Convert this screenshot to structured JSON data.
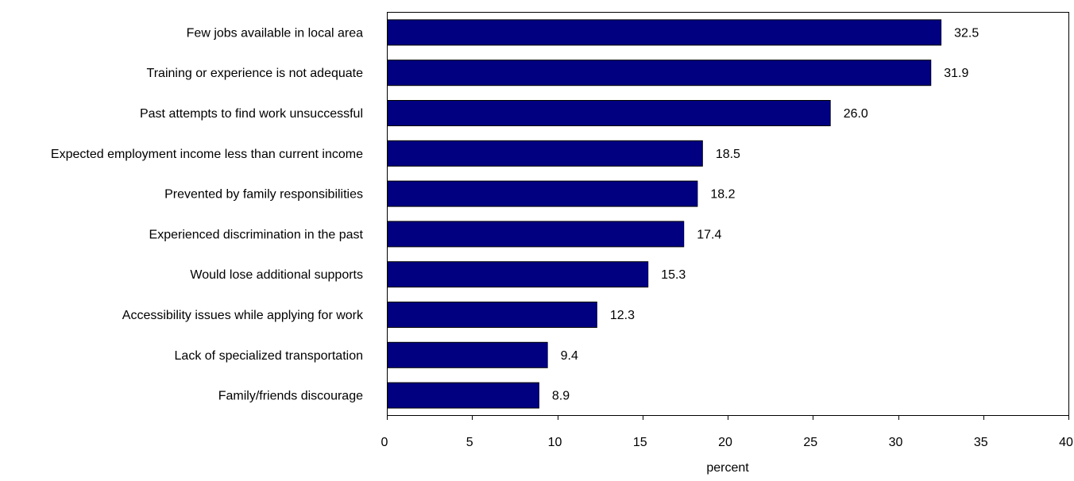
{
  "chart_data": {
    "type": "bar",
    "orientation": "horizontal",
    "categories": [
      "Few jobs available in local area",
      "Training or experience is not adequate",
      "Past attempts to find work unsuccessful",
      "Expected employment income less than current income",
      "Prevented by family responsibilities",
      "Experienced discrimination in the past",
      "Would lose additional supports",
      "Accessibility issues while applying for work",
      "Lack of specialized transportation",
      "Family/friends discourage"
    ],
    "values": [
      32.5,
      31.9,
      26.0,
      18.5,
      18.2,
      17.4,
      15.3,
      12.3,
      9.4,
      8.9
    ],
    "value_labels": [
      "32.5",
      "31.9",
      "26.0",
      "18.5",
      "18.2",
      "17.4",
      "15.3",
      "12.3",
      "9.4",
      "8.9"
    ],
    "xlabel": "percent",
    "xlim": [
      0,
      40
    ],
    "xticks": [
      0,
      5,
      10,
      15,
      20,
      25,
      30,
      35,
      40
    ],
    "grid": false,
    "legend": "none",
    "colors": {
      "bar_fill": "#000080",
      "bar_stroke": "#000000",
      "frame": "#000000"
    }
  }
}
